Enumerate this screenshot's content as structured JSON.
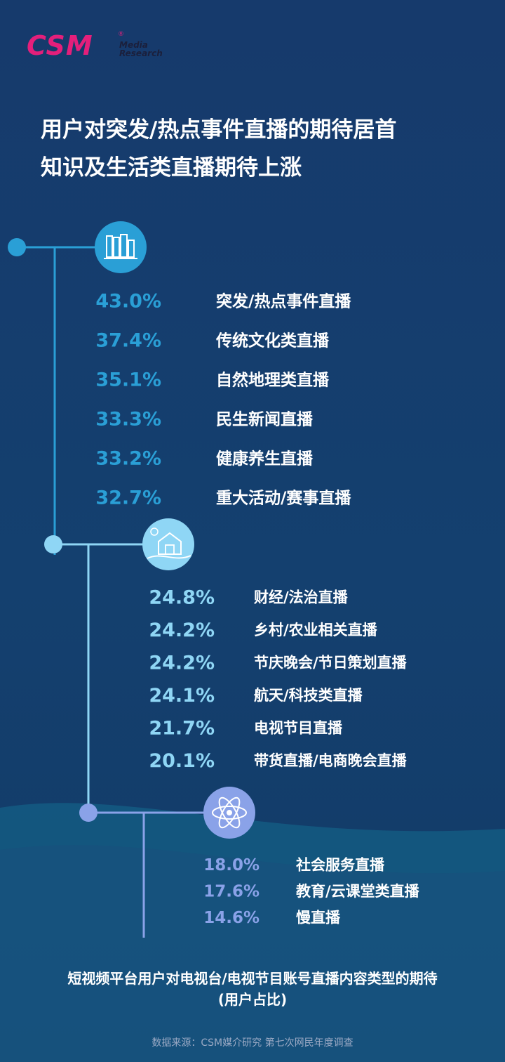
{
  "logo": {
    "mark": "CSM",
    "reg": "®",
    "sub1": "Media",
    "sub2": "Research"
  },
  "headline": {
    "line1": "用户对突发/热点事件直播的期待居首",
    "line2": "知识及生活类直播期待上涨"
  },
  "colors": {
    "tier1": "#2a9fd6",
    "tier2": "#8fd6f5",
    "tier3": "#8aa2e8",
    "label": "#ffffff",
    "brand": "#e41f7b"
  },
  "chart_data": {
    "type": "table",
    "unit": "%",
    "groups": [
      {
        "icon": "books-icon",
        "items": [
          {
            "label": "突发/热点事件直播",
            "value": 43.0
          },
          {
            "label": "传统文化类直播",
            "value": 37.4
          },
          {
            "label": "自然地理类直播",
            "value": 35.1
          },
          {
            "label": "民生新闻直播",
            "value": 33.3
          },
          {
            "label": "健康养生直播",
            "value": 33.2
          },
          {
            "label": "重大活动/赛事直播",
            "value": 32.7
          }
        ]
      },
      {
        "icon": "farm-barn-icon",
        "items": [
          {
            "label": "财经/法治直播",
            "value": 24.8
          },
          {
            "label": "乡村/农业相关直播",
            "value": 24.2
          },
          {
            "label": "节庆晚会/节日策划直播",
            "value": 24.2
          },
          {
            "label": "航天/科技类直播",
            "value": 24.1
          },
          {
            "label": "电视节目直播",
            "value": 21.7
          },
          {
            "label": "带货直播/电商晚会直播",
            "value": 20.1
          }
        ]
      },
      {
        "icon": "atom-icon",
        "items": [
          {
            "label": "社会服务直播",
            "value": 18.0
          },
          {
            "label": "教育/云课堂类直播",
            "value": 17.6
          },
          {
            "label": "慢直播",
            "value": 14.6
          }
        ]
      }
    ]
  },
  "footer": {
    "title_line1": "短视频平台用户对电视台/电视节目账号直播内容类型的期待",
    "title_line2": "(用户占比)",
    "source": "数据来源：CSM媒介研究 第七次网民年度调查"
  }
}
